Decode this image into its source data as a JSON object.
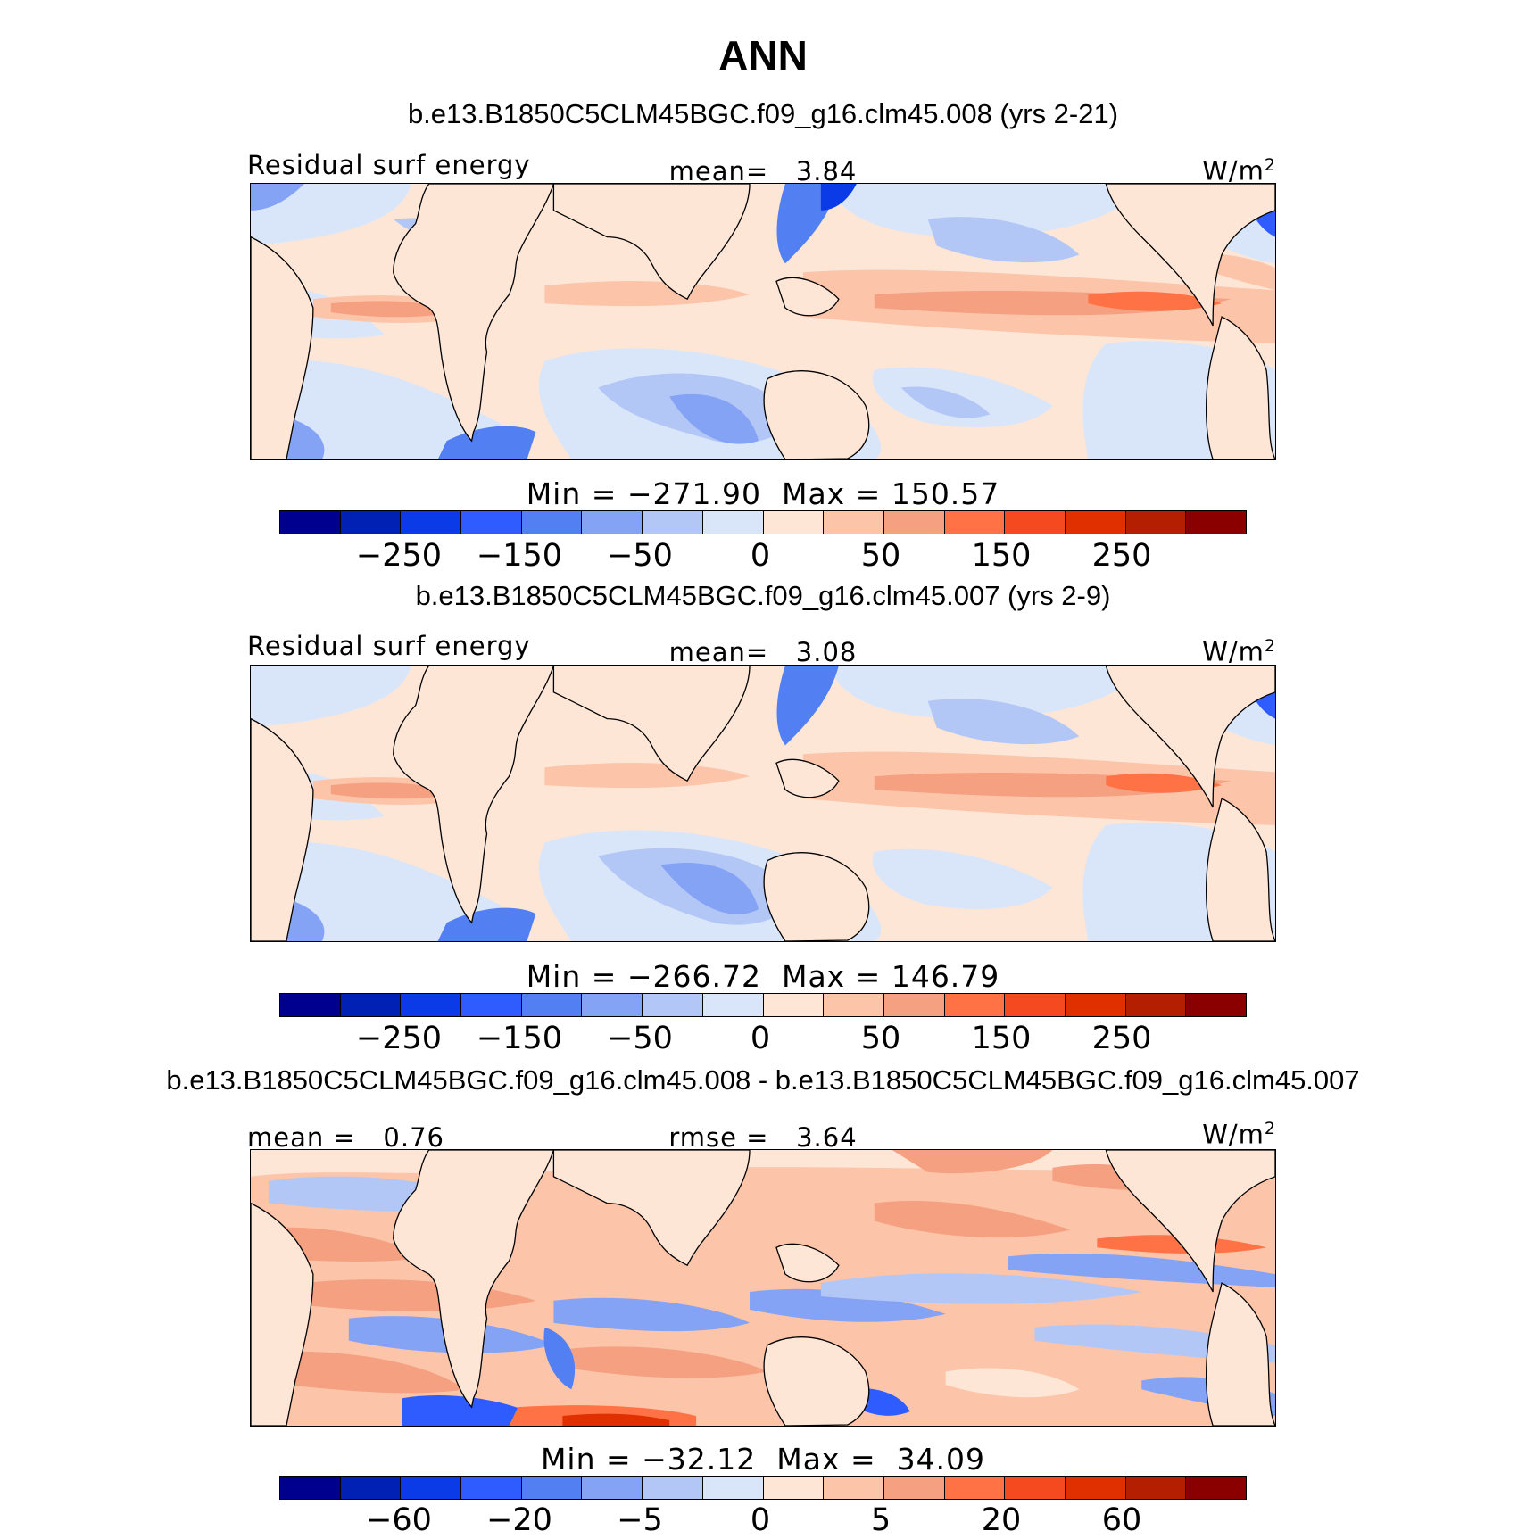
{
  "title": "ANN",
  "units": "W/m",
  "units_sup": "2",
  "colors": {
    "palette": [
      "#00008f",
      "#0021b3",
      "#0a3be6",
      "#2e5cff",
      "#5280f2",
      "#85a3f5",
      "#b3c7f7",
      "#d9e6fa",
      "#fde6d6",
      "#fcc4a8",
      "#f5a080",
      "#ff7245",
      "#f54a1f",
      "#e03000",
      "#b31f00",
      "#8a0000"
    ],
    "land": "#fde6d6",
    "coast": "#000000"
  },
  "panels": [
    {
      "case": "b.e13.B1850C5CLM45BGC.f09_g16.clm45.008 (yrs 2-21)",
      "left_label": "Residual surf energy",
      "center_label": "mean=   3.84",
      "minmax": "Min = −271.90  Max = 150.57",
      "ticks": [
        "−250",
        "−150",
        "−50",
        "0",
        "50",
        "150",
        "250"
      ]
    },
    {
      "case": "b.e13.B1850C5CLM45BGC.f09_g16.clm45.007 (yrs 2-9)",
      "left_label": "Residual surf energy",
      "center_label": "mean=   3.08",
      "minmax": "Min = −266.72  Max = 146.79",
      "ticks": [
        "−250",
        "−150",
        "−50",
        "0",
        "50",
        "150",
        "250"
      ]
    },
    {
      "case": "b.e13.B1850C5CLM45BGC.f09_g16.clm45.008 - b.e13.B1850C5CLM45BGC.f09_g16.clm45.007",
      "left_label": "mean =   0.76",
      "center_label": "rmse =   3.64",
      "minmax": "Min = −32.12  Max =  34.09",
      "ticks": [
        "−60",
        "−20",
        "−5",
        "0",
        "5",
        "20",
        "60"
      ]
    }
  ]
}
